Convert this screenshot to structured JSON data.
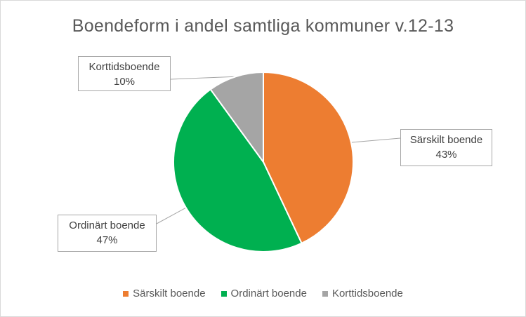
{
  "chart_data": {
    "type": "pie",
    "title": "Boendeform  i andel samtliga kommuner  v.12-13",
    "categories": [
      "Särskilt boende",
      "Ordinärt boende",
      "Korttidsboende"
    ],
    "values": [
      43,
      47,
      10
    ],
    "labels": [
      "43%",
      "47%",
      "10%"
    ],
    "colors": [
      "#ED7D31",
      "#00B050",
      "#A5A5A5"
    ],
    "legend": "bottom",
    "start_angle_deg": 0,
    "direction": "clockwise"
  }
}
